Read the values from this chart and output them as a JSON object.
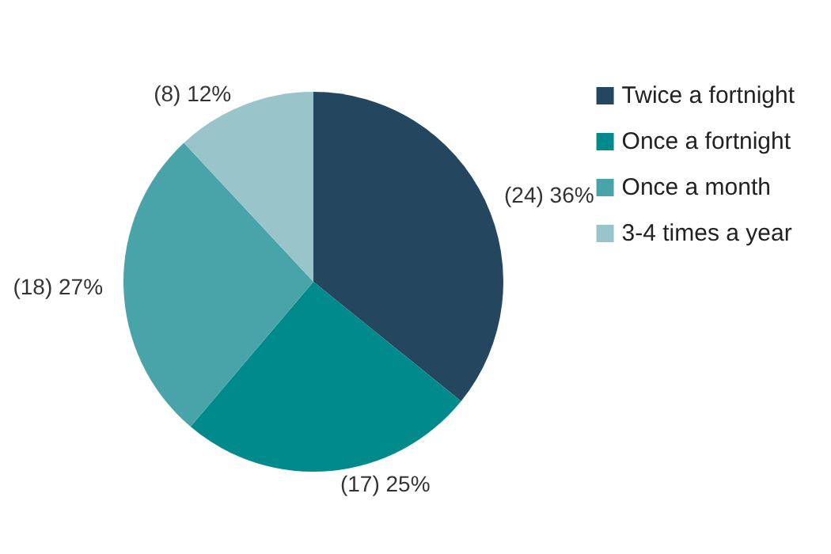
{
  "chart_data": {
    "type": "pie",
    "categories": [
      "Twice a fortnight",
      "Once a fortnight",
      "Once a month",
      "3-4 times a year"
    ],
    "values": [
      24,
      17,
      18,
      8
    ],
    "value_labels": [
      "(24) 36%",
      "(17) 25%",
      "(18) 27%",
      "(8) 12%"
    ],
    "colors": [
      "#24475f",
      "#008a8c",
      "#48a4a8",
      "#99c4c9"
    ],
    "legend": "right"
  }
}
